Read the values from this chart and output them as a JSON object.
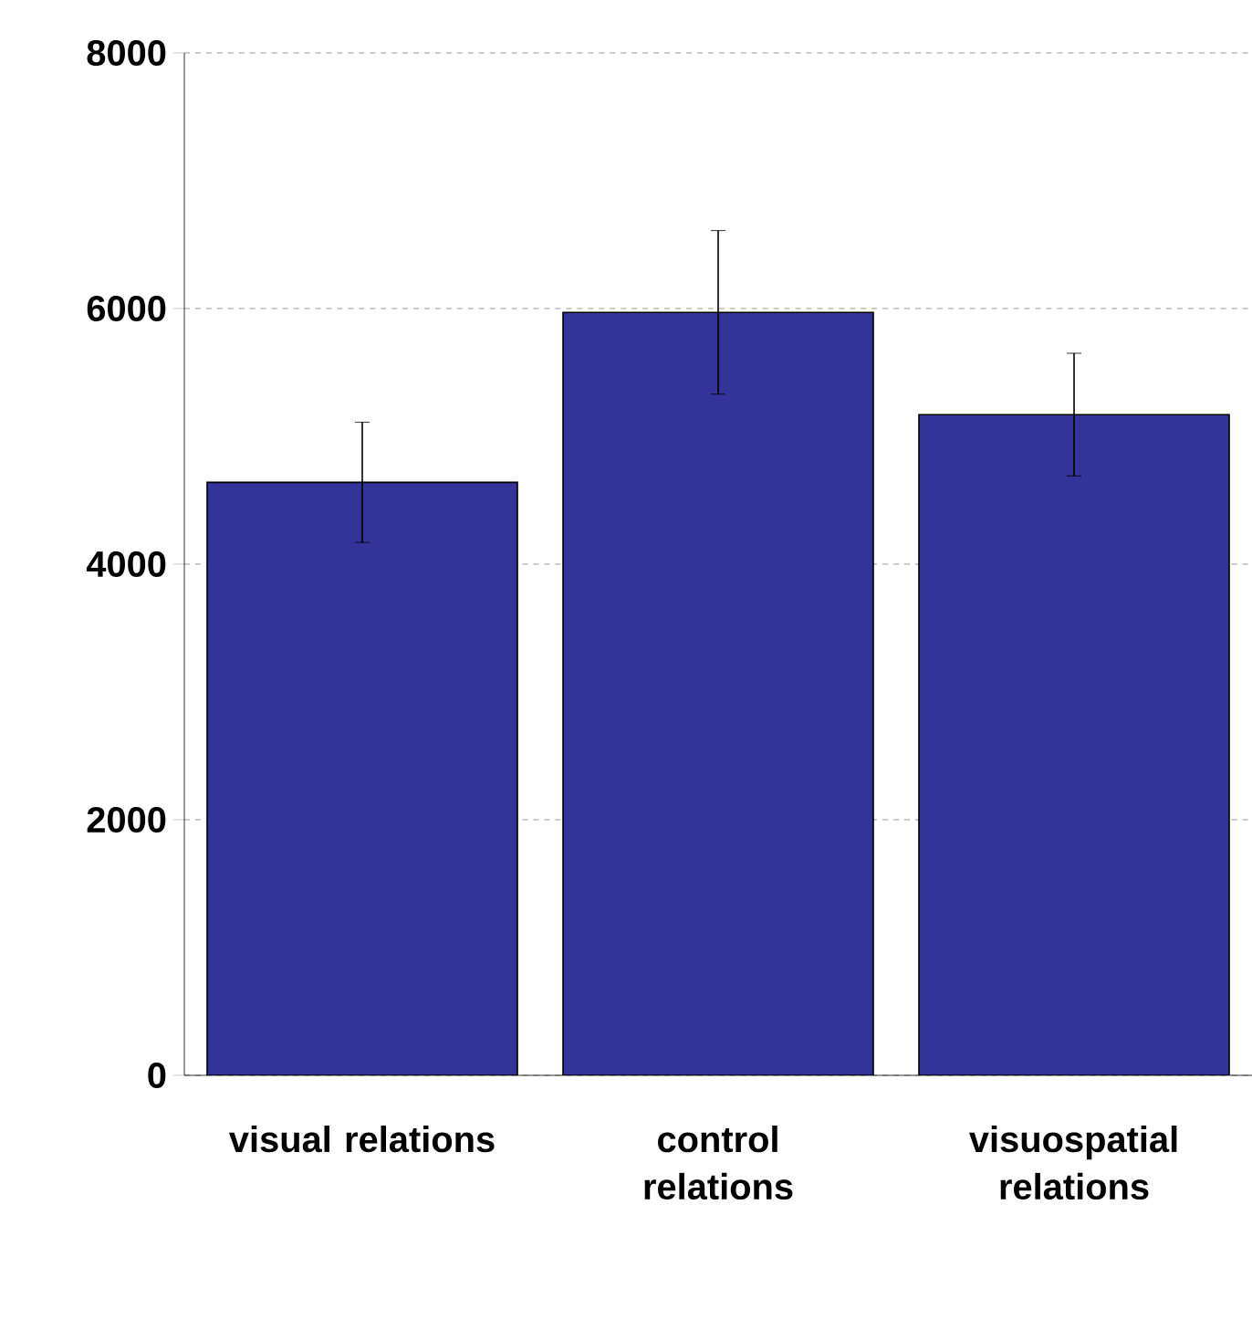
{
  "chart_data": {
    "type": "bar",
    "categories": [
      "visual relations",
      "control relations",
      "visuospatial relations"
    ],
    "values": [
      4640,
      5970,
      5170
    ],
    "errors": [
      470,
      640,
      480
    ],
    "color": "#333399",
    "ylim": [
      0,
      8000
    ],
    "yticks": [
      0,
      2000,
      4000,
      6000,
      8000
    ],
    "grid": "y"
  }
}
